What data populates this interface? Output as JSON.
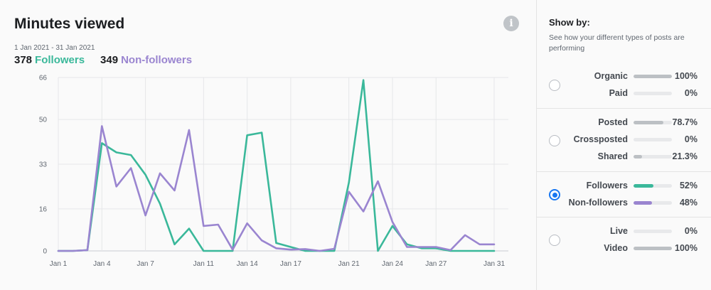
{
  "header": {
    "title": "Minutes viewed",
    "info_icon": "info-icon",
    "date_range": "1 Jan 2021 - 31 Jan 2021",
    "followers_count": "378",
    "followers_label": "Followers",
    "nonfollowers_count": "349",
    "nonfollowers_label": "Non-followers"
  },
  "sidebar": {
    "title": "Show by:",
    "description": "See how your different types of posts are performing",
    "groups": [
      {
        "selected": false,
        "rows": [
          {
            "label": "Organic",
            "value": "100%",
            "fraction": 1.0,
            "color": "#bcc0c4"
          },
          {
            "label": "Paid",
            "value": "0%",
            "fraction": 0.0,
            "color": "#bcc0c4"
          }
        ]
      },
      {
        "selected": false,
        "rows": [
          {
            "label": "Posted",
            "value": "78.7%",
            "fraction": 0.787,
            "color": "#bcc0c4"
          },
          {
            "label": "Crossposted",
            "value": "0%",
            "fraction": 0.0,
            "color": "#bcc0c4"
          },
          {
            "label": "Shared",
            "value": "21.3%",
            "fraction": 0.213,
            "color": "#bcc0c4"
          }
        ]
      },
      {
        "selected": true,
        "rows": [
          {
            "label": "Followers",
            "value": "52%",
            "fraction": 0.52,
            "color": "#3ab89a"
          },
          {
            "label": "Non-followers",
            "value": "48%",
            "fraction": 0.48,
            "color": "#9a85d0"
          }
        ]
      },
      {
        "selected": false,
        "rows": [
          {
            "label": "Live",
            "value": "0%",
            "fraction": 0.0,
            "color": "#bcc0c4"
          },
          {
            "label": "Video",
            "value": "100%",
            "fraction": 1.0,
            "color": "#bcc0c4"
          }
        ]
      }
    ]
  },
  "chart_data": {
    "type": "line",
    "x": [
      1,
      2,
      3,
      4,
      5,
      6,
      7,
      8,
      9,
      10,
      11,
      12,
      13,
      14,
      15,
      16,
      17,
      18,
      19,
      20,
      21,
      22,
      23,
      24,
      25,
      26,
      27,
      28,
      29,
      30,
      31
    ],
    "x_tick_values": [
      1,
      4,
      7,
      11,
      14,
      17,
      21,
      24,
      27,
      31
    ],
    "x_tick_labels": [
      "Jan 1",
      "Jan 4",
      "Jan 7",
      "Jan 11",
      "Jan 14",
      "Jan 17",
      "Jan 21",
      "Jan 24",
      "Jan 27",
      "Jan 31"
    ],
    "y_ticks": [
      0,
      16,
      33,
      50,
      66
    ],
    "ylim": [
      0,
      66
    ],
    "xlim": [
      1,
      31
    ],
    "grid": true,
    "series": [
      {
        "name": "Followers",
        "color": "#3ab89a",
        "values": [
          0,
          0,
          0.3,
          41,
          37.5,
          36.5,
          29,
          18,
          2.5,
          8.5,
          0,
          0,
          0,
          44,
          45,
          3,
          1.5,
          0,
          0,
          0,
          26,
          65,
          0,
          9.5,
          2.5,
          1,
          1,
          0,
          0,
          0,
          0
        ]
      },
      {
        "name": "Non-followers",
        "color": "#9a85d0",
        "values": [
          0,
          0,
          0.3,
          47.5,
          24.5,
          31.5,
          13.5,
          29.5,
          23,
          46,
          9.5,
          10,
          0.5,
          10.5,
          4,
          1,
          0.5,
          0.7,
          0,
          0.8,
          22.5,
          15,
          26.5,
          11,
          1.5,
          1.5,
          1.5,
          0.3,
          6,
          2.5,
          2.5
        ]
      }
    ]
  }
}
